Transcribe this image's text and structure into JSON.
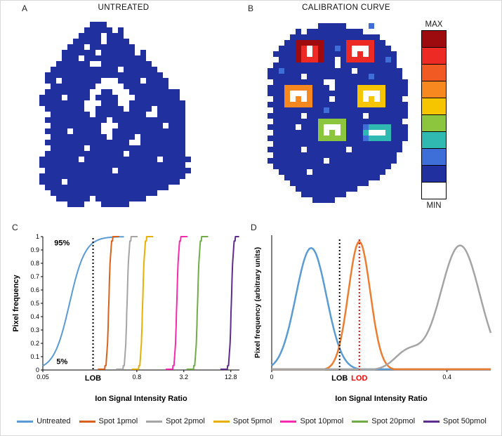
{
  "figure": {
    "panels": {
      "a": {
        "label": "A",
        "title": "UNTREATED"
      },
      "b": {
        "label": "B",
        "title": "CALIBRATION CURVE"
      },
      "c": {
        "label": "C"
      },
      "d": {
        "label": "D"
      }
    },
    "colorbar": {
      "max_label": "MAX",
      "min_label": "MIN",
      "colors": [
        "#9E0B0F",
        "#EE2A24",
        "#F15A22",
        "#F6881F",
        "#F7C500",
        "#8CC63F",
        "#2FB9B0",
        "#3E6FD8",
        "#20309E",
        "#FFFFFF"
      ]
    },
    "palette": {
      "N": "#20309E",
      "b": "#3E6FD8",
      "c": "#2FB9B0",
      "g": "#8CC63F",
      "y": "#F7C500",
      "o": "#F6881F",
      "r": "#EE2A24",
      "d": "#9E0B0F",
      "w": "#FFFFFF"
    },
    "bitmap_a": {
      "cell": 8,
      "rows": [
        "..............................",
        ".........NNN..................",
        "........NNNNN.N...............",
        ".......NNNN.NNN...............",
        "......NNNNN.NNNN..............",
        ".....NNN.NNNNNNNN.............",
        "....NNNNNN.NNNNNN.N...........",
        "....NNN.NNNNNNNNNNN...........",
        "...NNNNNN..NNNNNNNNN..........",
        "..NNNNNNNNNNNN.NNNNNN.........",
        ".NNNNNNNNNNNNNNNNNNNNN........",
        ".NN.NNNNNNN...NNNN.NNNN.......",
        "..NNNNNNNN.....NNNNNNNN.......",
        ".NNNNNNNN..NN...NNNNNNNNN.....",
        "NNNN.NNNN.NNNN...NNNNNNNN.....",
        "NNNNNNNN...NNN..NNNNNNNNNN....",
        ".NNNNNNN..NNNNN.NNNN.NNNNN....",
        "..NNNNNNN.NNNNNNNNN..NNNNN....",
        ".NNNNNNNNNNN.NNNNNNNNNNNNN....",
        "..NNNNNNNNN...NNNNNNNN.NNN....",
        ".NNNN.NNNNN..NNNNNNNNNNNNN....",
        "..NNNNNNNNNN.NNNN.NNNNNNNN....",
        ".NNNNNNNNNNNNNNN..NNNNNNNN....",
        "..NNNNNN.NNNNNNNNNNNNNNNNN....",
        ".NNNNNNNNNNNNNN.NNNNNNNNNN....",
        "NNNNNNN.NNNNNNNNNNNNN.NNNNN...",
        "NNNNNNNNNNNNNNNNNNNNNNNNNN....",
        ".NNNNNNNNNNNN.NNNNNNNNNNNNN...",
        "NNNNNNNNNNNNNNNNNNNNNNNNNN....",
        "NNNN.NNNNNNNNNNNNNNNNNNNN.....",
        ".NNNNNNNNNNNNNNNNNNNNNN.......",
        "..NNNNNNNNNNNNNNNNNNN.........",
        "...NNNNNN.NNNNNNNNN...........",
        ".....NNN...NNNNN..............",
        ".............................."
      ]
    },
    "bitmap_b": {
      "cell": 8,
      "rows": [
        "..............................",
        "..........NNNNN....b..........",
        "......N.NNNNNNNNNN............",
        ".....NNNNNNNNNNNNNNNN.........",
        "....NNdddddNNNNrrrrrNN........",
        "...NNNdrwrdNNbNrwwwrNNN.......",
        "..NNNNdrwrdNNNNrwrwrNNNN......",
        "...NNNdrrrdNN.NrrrrrNNbN......",
        "..NNNNNNNNNNN.NNNNNNNNNN......",
        ".NNbNNNNNNNNNNNN.NNNNNNNN.....",
        ".NNNNNN.NNNNNNNNNNNbNNNNN.....",
        "..NNNNNNNNN..NNNNNNNNNNNNN....",
        ".NNNoooooNNN.NNNNyyyyyNNNN....",
        ".NNNowwwoNNNNNNNNywwwyNNNN....",
        "..NNowowoNNN.NNNNywywyNNN.....",
        ".NNNoooooNNNNNNNNyyyyyNNNN....",
        "..NNNNNNNNNbNNNNNNNNNNNNNN....",
        ".NNNNNN.NNNNNNNNNN.NNNNNNN....",
        "..NNNNNNNNgggggNNNNNNNNNN.....",
        ".NNNNN.NNNgwwwgNNNbccccNNN....",
        "..NNNNNNNNgwgwgNNNcwwwcNNN....",
        ".NNNNNNNNNgggggNNNbccccNNN....",
        "..NNNNNNNNNNNNNNNNNNNNNNN.....",
        ".NNNNNN.NNNNNNN.NNNNNNNNN.....",
        "..NNNNNNNNNNNNNNNNNNNNNN......",
        ".NNNNNNNNNN.NNNNNNNNNNNN......",
        "..NNNNNNNNNNNNNNNNNNNNN.......",
        "...NNNNN.NNNNNNNNNNNNN........",
        "....NNNNNNNNNNNNNNNNN.........",
        ".....NNNNNNNNNNNNNN...........",
        "......NNNNNNNNNNN.............",
        ".......NNNNNNNN...............",
        ".........NNNN.................",
        ".............................."
      ]
    }
  },
  "chart_data": [
    {
      "id": "panel-c",
      "type": "line",
      "subtype": "cumulative-frequency",
      "xlabel": "Ion Signal Intensity Ratio",
      "ylabel": "Pixel frequency",
      "x_scale": "log",
      "xlim": [
        0.05,
        16.5
      ],
      "ylim": [
        0,
        1
      ],
      "x_ticks": [
        0.05,
        0.8,
        3.2,
        12.8
      ],
      "x_tick_labels": [
        "0.05",
        "0.8",
        "3.2",
        "12.8"
      ],
      "y_ticks": [
        0,
        0.1,
        0.2,
        0.3,
        0.4,
        0.5,
        0.6,
        0.7,
        0.8,
        0.9,
        1
      ],
      "series": [
        {
          "name": "Untreated",
          "color": "#5B9BD5",
          "center": 0.11,
          "spread": 0.1,
          "full": true,
          "steps": false
        },
        {
          "name": "Spot 1pmol",
          "color": "#D9611E",
          "center": 0.35,
          "spread": 0.012,
          "full": false,
          "steps": true
        },
        {
          "name": "Spot 2pmol",
          "color": "#A5A5A5",
          "center": 0.6,
          "spread": 0.012,
          "full": false,
          "steps": true
        },
        {
          "name": "Spot 5pmol",
          "color": "#E8B007",
          "center": 0.95,
          "spread": 0.012,
          "full": false,
          "steps": true
        },
        {
          "name": "Spot 10pmol",
          "color": "#F72BB0",
          "center": 2.6,
          "spread": 0.012,
          "full": false,
          "steps": true
        },
        {
          "name": "Spot 20pmol",
          "color": "#70AD47",
          "center": 4.8,
          "spread": 0.012,
          "full": false,
          "steps": true
        },
        {
          "name": "Spot 50pmol",
          "color": "#5E2D8F",
          "center": 13.0,
          "spread": 0.012,
          "full": false,
          "steps": true
        }
      ],
      "reference_lines": [
        {
          "label": "LOB",
          "x": 0.22,
          "color": "#000000",
          "style": "dotted"
        }
      ],
      "annotations": [
        {
          "text": "95%",
          "x": 0.088,
          "y": 0.95
        },
        {
          "text": "5%",
          "x": 0.088,
          "y": 0.06
        }
      ]
    },
    {
      "id": "panel-d",
      "type": "line",
      "subtype": "density",
      "xlabel": "Ion Signal Intensity Ratio",
      "ylabel": "Pixel frequency (arbitrary units)",
      "x_scale": "linear",
      "xlim": [
        0,
        0.5
      ],
      "ylim": [
        0,
        1.05
      ],
      "x_ticks": [
        0,
        0.4
      ],
      "x_tick_labels": [
        "0",
        "0.4"
      ],
      "series": [
        {
          "name": "Untreated",
          "color": "#5B9BD5",
          "components": [
            {
              "mu": 0.09,
              "sigma": 0.035,
              "amp": 0.95
            }
          ]
        },
        {
          "name": "Spot 1pmol",
          "color": "#ED7D31",
          "components": [
            {
              "mu": 0.2,
              "sigma": 0.025,
              "amp": 1.0
            }
          ]
        },
        {
          "name": "Spot 2pmol",
          "color": "#A5A5A5",
          "components": [
            {
              "mu": 0.43,
              "sigma": 0.045,
              "amp": 0.97
            },
            {
              "mu": 0.31,
              "sigma": 0.03,
              "amp": 0.14
            }
          ]
        }
      ],
      "reference_lines": [
        {
          "label": "LOB",
          "x": 0.155,
          "color": "#000000",
          "style": "dotted"
        },
        {
          "label": "LOD",
          "x": 0.2,
          "color": "#FF0000",
          "style": "dotted"
        }
      ]
    }
  ],
  "legend": {
    "items": [
      {
        "label": "Untreated",
        "color": "#5B9BD5"
      },
      {
        "label": "Spot 1pmol",
        "color": "#D9611E"
      },
      {
        "label": "Spot 2pmol",
        "color": "#A5A5A5"
      },
      {
        "label": "Spot 5pmol",
        "color": "#E8B007"
      },
      {
        "label": "Spot 10pmol",
        "color": "#F72BB0"
      },
      {
        "label": "Spot 20pmol",
        "color": "#70AD47"
      },
      {
        "label": "Spot 50pmol",
        "color": "#5E2D8F"
      }
    ]
  }
}
